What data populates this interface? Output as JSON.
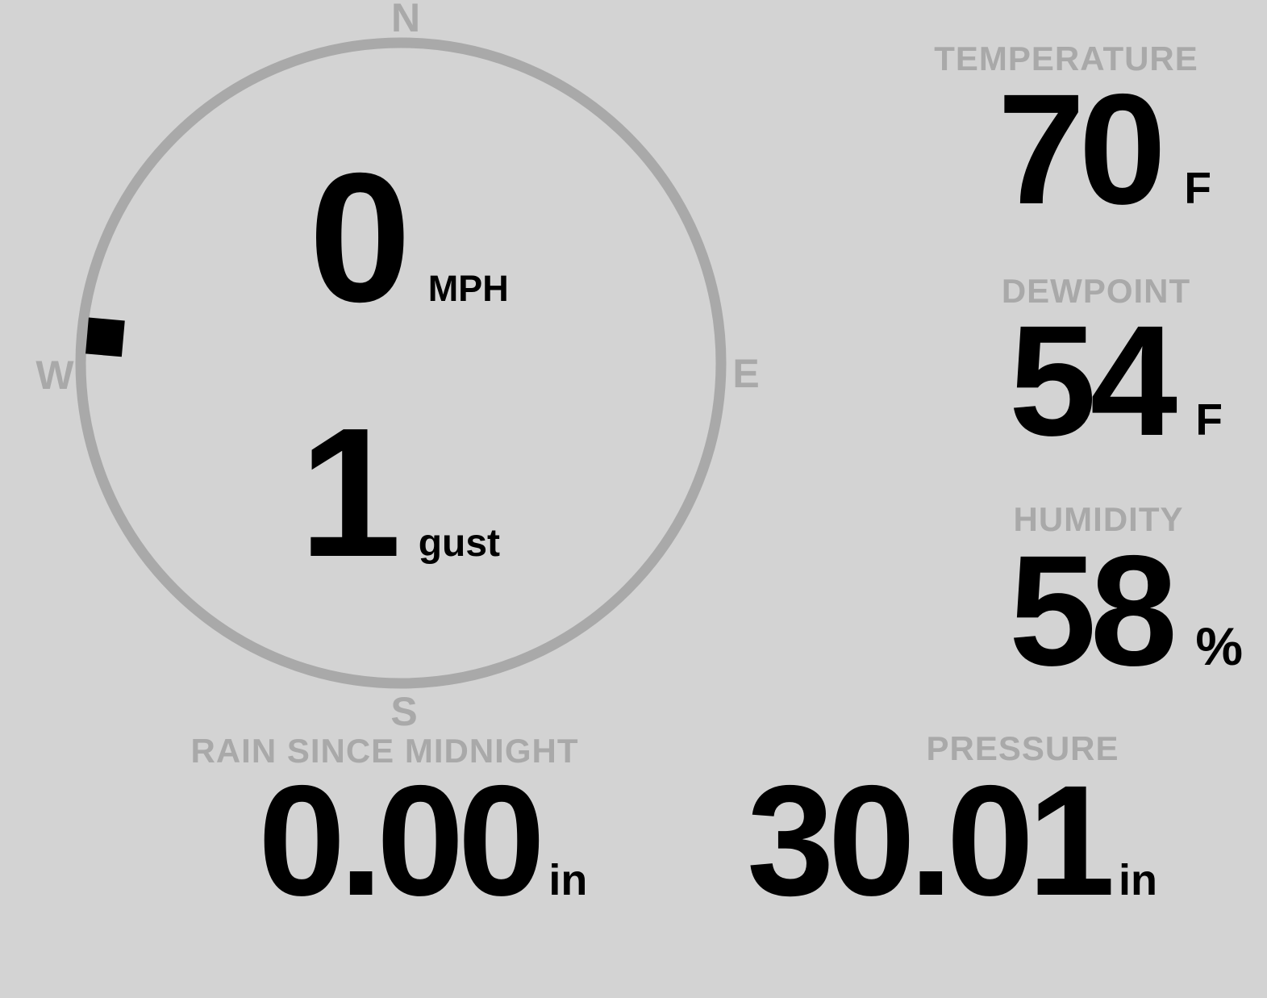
{
  "theme": {
    "background": "#d3d3d3",
    "muted": "#a9a9a9",
    "value_color": "#000000"
  },
  "compass": {
    "cardinals": {
      "north": "N",
      "east": "E",
      "south": "S",
      "west": "W"
    },
    "wind": {
      "speed": "0",
      "speed_unit": "MPH",
      "gust": "1",
      "gust_unit": "gust"
    },
    "direction_deg": 275
  },
  "metrics": {
    "temperature": {
      "label": "TEMPERATURE",
      "value": "70",
      "unit": "F"
    },
    "dewpoint": {
      "label": "DEWPOINT",
      "value": "54",
      "unit": "F"
    },
    "humidity": {
      "label": "HUMIDITY",
      "value": "58",
      "unit": "%"
    },
    "rain_since_midnight": {
      "label": "RAIN SINCE MIDNIGHT",
      "value": "0.00",
      "unit": "in"
    },
    "pressure": {
      "label": "PRESSURE",
      "value": "30.01",
      "unit": "in"
    }
  }
}
